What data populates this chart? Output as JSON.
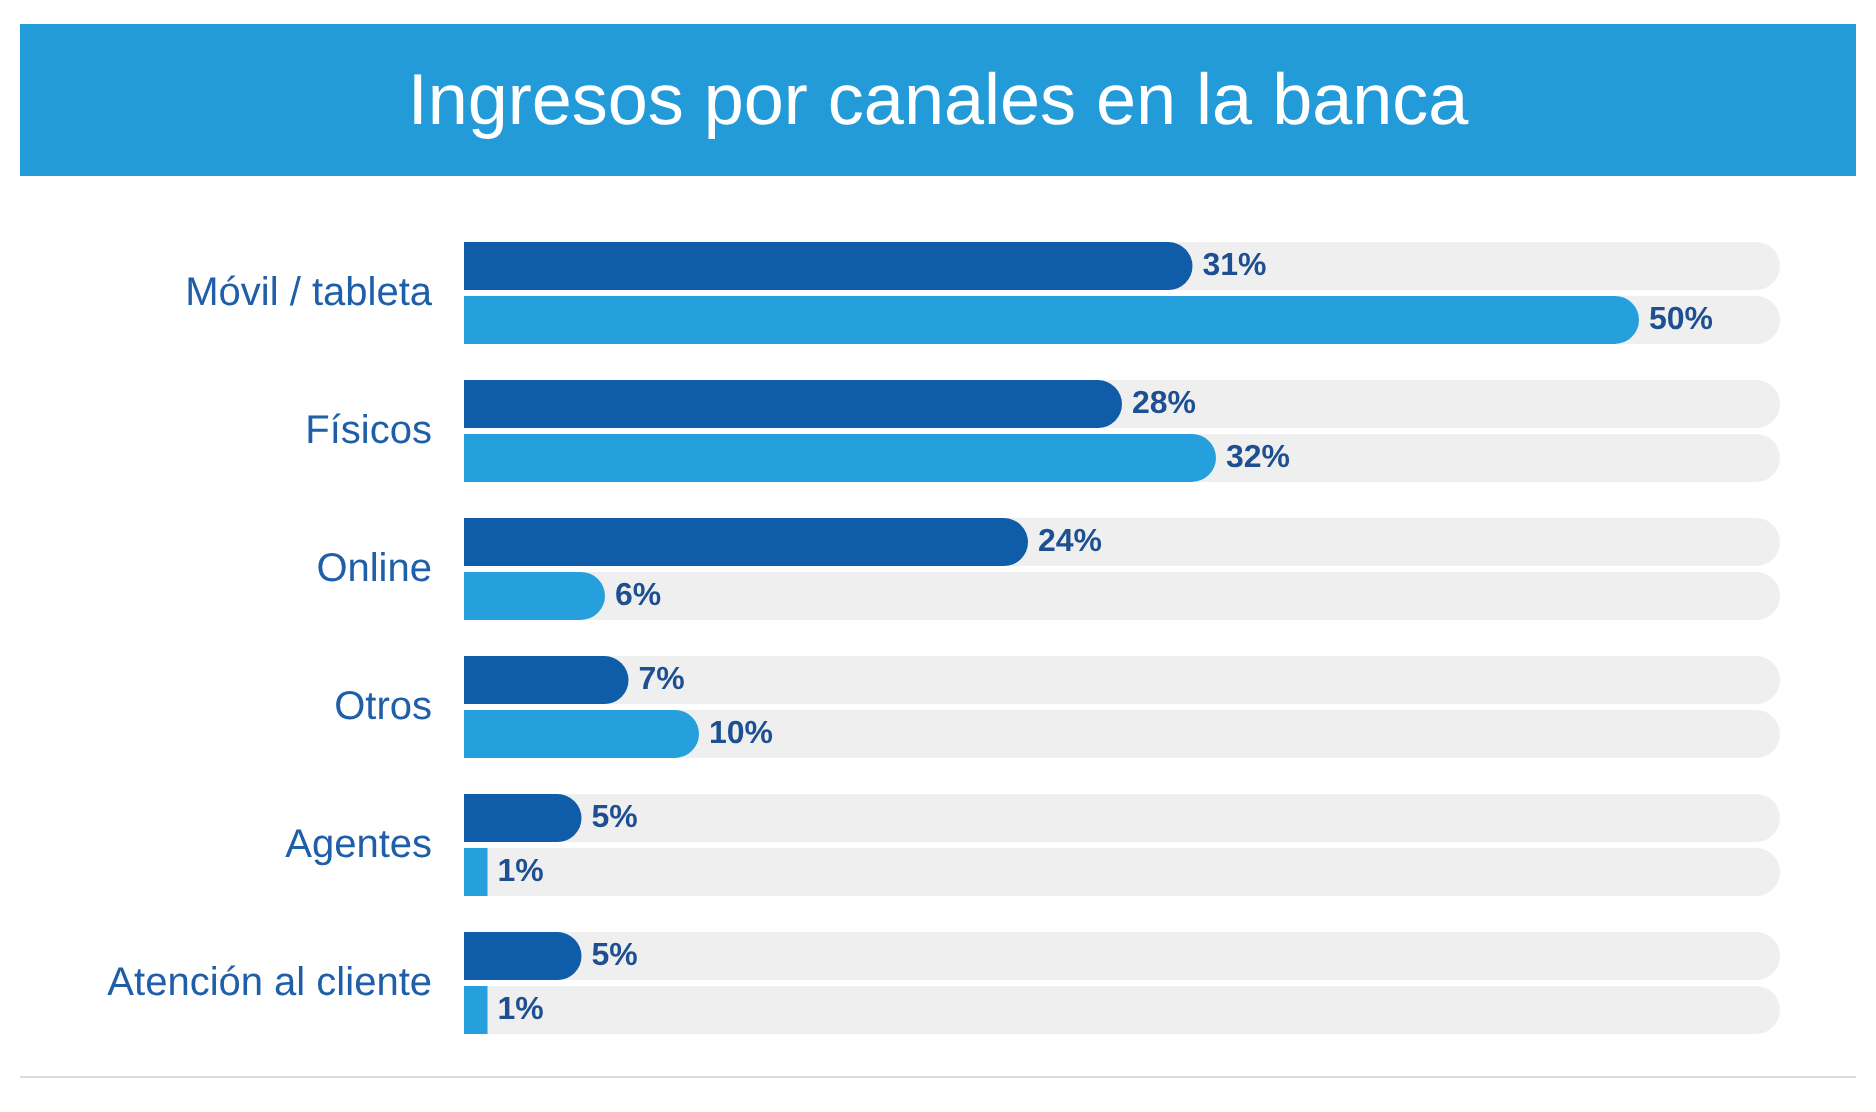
{
  "chart_data": {
    "type": "bar",
    "orientation": "horizontal",
    "title": "Ingresos por canales en la banca",
    "categories": [
      "Móvil / tableta",
      "Físicos",
      "Online",
      "Otros",
      "Agentes",
      "Atención al cliente"
    ],
    "series": [
      {
        "color": "#0f5ca8",
        "values": [
          31,
          28,
          24,
          7,
          5,
          5
        ],
        "value_labels": [
          "31%",
          "28%",
          "24%",
          "7%",
          "5%",
          "5%"
        ]
      },
      {
        "color": "#25a0dc",
        "values": [
          50,
          32,
          6,
          10,
          1,
          1
        ],
        "value_labels": [
          "50%",
          "32%",
          "6%",
          "10%",
          "1%",
          "1%"
        ]
      }
    ],
    "xlim": [
      0,
      56
    ],
    "tick_labels": "y"
  }
}
